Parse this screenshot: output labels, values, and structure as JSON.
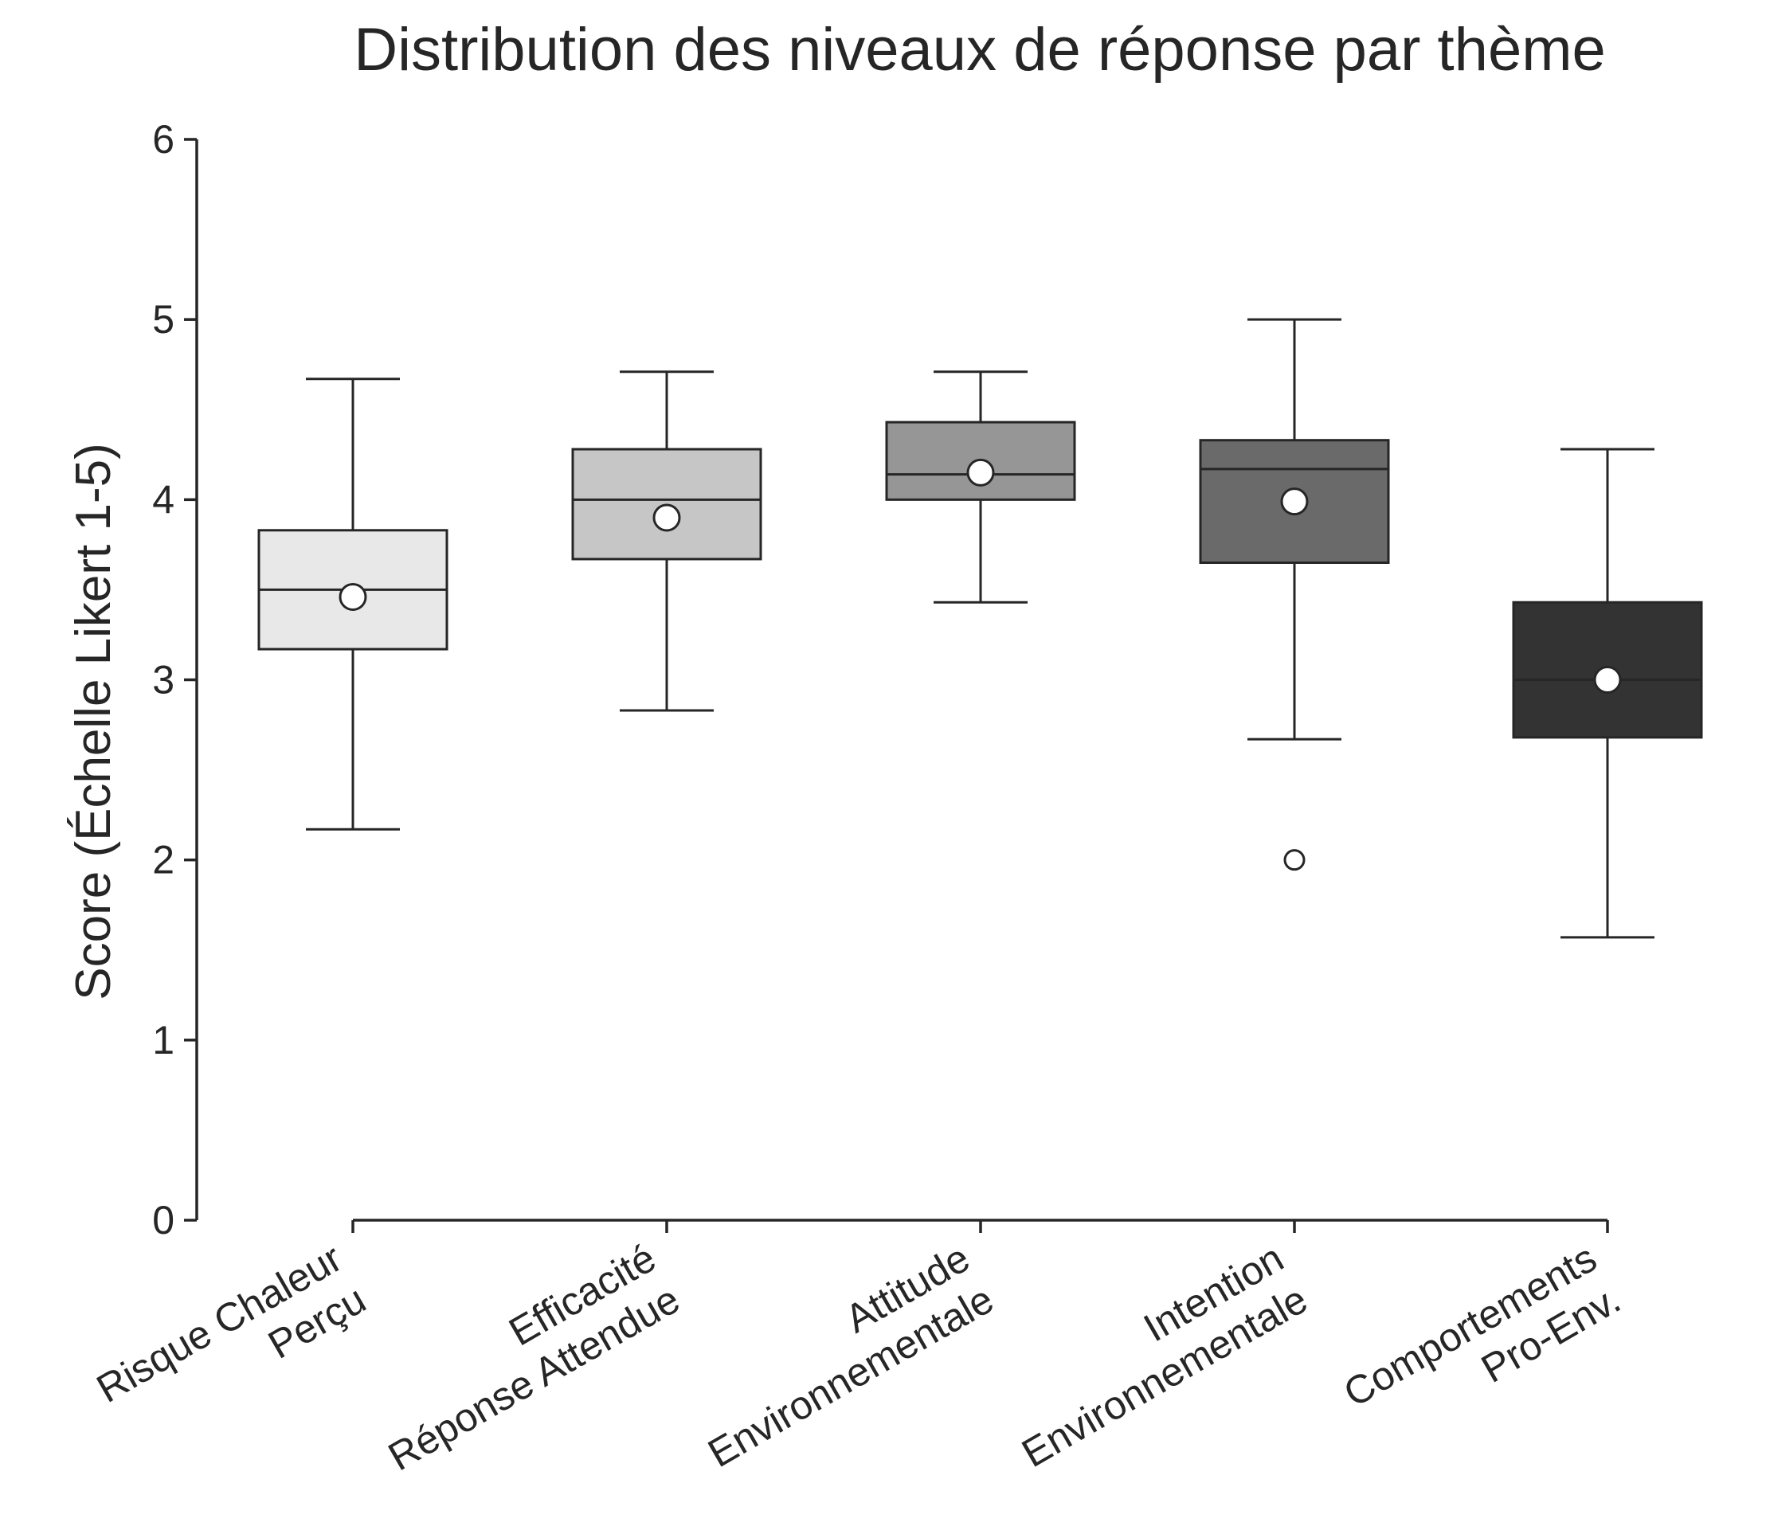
{
  "chart_data": {
    "type": "box",
    "title": "Distribution des niveaux de réponse par thème",
    "xlabel": "",
    "ylabel": "Score (Échelle Likert 1-5)",
    "ylim": [
      0,
      6
    ],
    "yticks": [
      0,
      1,
      2,
      3,
      4,
      5,
      6
    ],
    "grid": false,
    "categories": [
      [
        "Risque Chaleur",
        "Perçu"
      ],
      [
        "Efficacité",
        "Réponse Attendue"
      ],
      [
        "Attitude",
        "Environnementale"
      ],
      [
        "Intention",
        "Environnementale"
      ],
      [
        "Comportements",
        "Pro-Env."
      ]
    ],
    "boxes": [
      {
        "whisker_low": 2.17,
        "q1": 3.17,
        "median": 3.5,
        "q3": 3.83,
        "whisker_high": 4.67,
        "mean": 3.46,
        "outliers": [],
        "color": "#e8e8e8"
      },
      {
        "whisker_low": 2.83,
        "q1": 3.67,
        "median": 4.0,
        "q3": 4.28,
        "whisker_high": 4.71,
        "mean": 3.9,
        "outliers": [],
        "color": "#c6c6c6"
      },
      {
        "whisker_low": 3.43,
        "q1": 4.0,
        "median": 4.14,
        "q3": 4.43,
        "whisker_high": 4.71,
        "mean": 4.15,
        "outliers": [],
        "color": "#969696"
      },
      {
        "whisker_low": 2.67,
        "q1": 3.65,
        "median": 4.17,
        "q3": 4.33,
        "whisker_high": 5.0,
        "mean": 3.99,
        "outliers": [
          2.0
        ],
        "color": "#6a6a6a"
      },
      {
        "whisker_low": 1.57,
        "q1": 2.68,
        "median": 3.0,
        "q3": 3.43,
        "whisker_high": 4.28,
        "mean": 3.0,
        "outliers": [],
        "color": "#333333"
      }
    ]
  }
}
